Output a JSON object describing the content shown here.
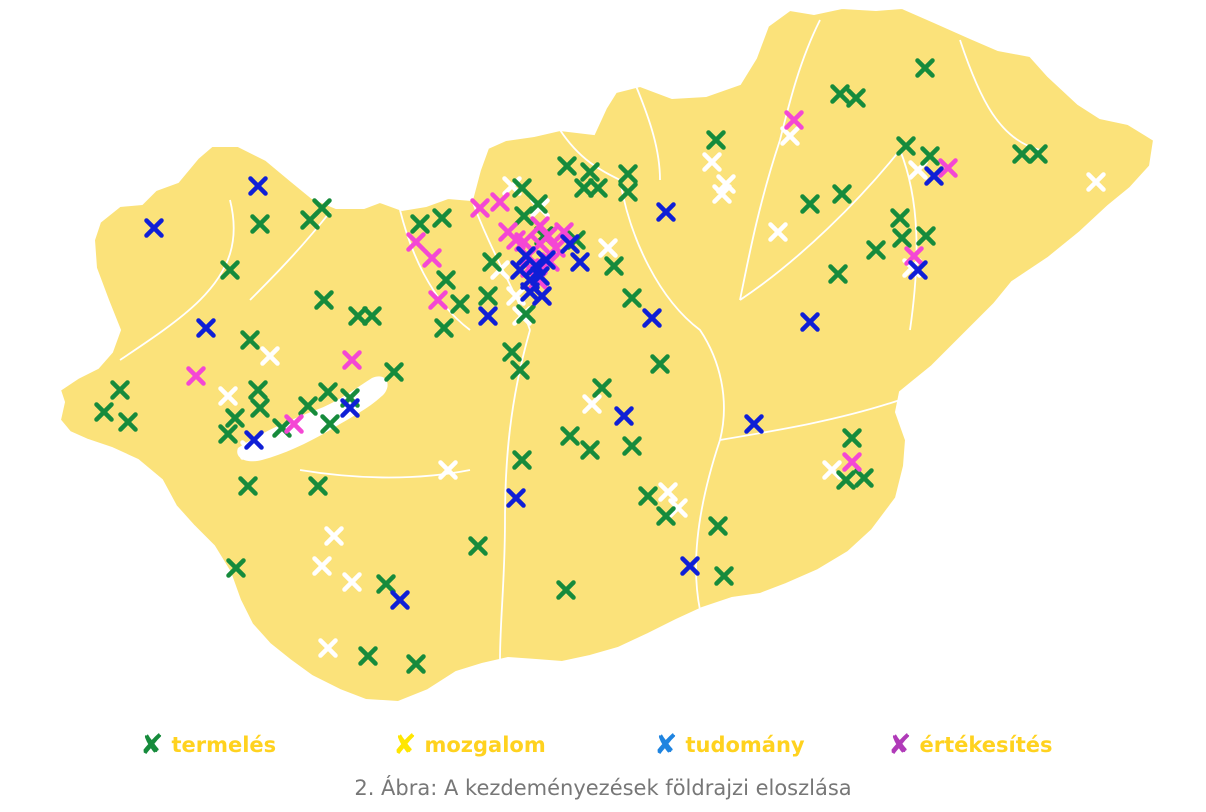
{
  "colors": {
    "land": "#fbe27a",
    "border": "#ffffff",
    "water": "#ffffff",
    "termeles": "#168b3c",
    "mozgalom": "#ffffff",
    "tudomany": "#0f1fd6",
    "ertekesites": "#f447d4",
    "legend_text": "#ffd21f",
    "legend_termeles_icon": "#168b3c",
    "legend_mozgalom_icon": "#ffe600",
    "legend_tudomany_icon": "#1f84e0",
    "legend_ertekesites_icon": "#b03ab8"
  },
  "legend": [
    {
      "key": "termeles",
      "label": "termelés",
      "icon": "x-mark-icon"
    },
    {
      "key": "mozgalom",
      "label": "mozgalom",
      "icon": "x-mark-icon"
    },
    {
      "key": "tudomany",
      "label": "tudomány",
      "icon": "x-mark-icon"
    },
    {
      "key": "ertekesites",
      "label": "értékesítés",
      "icon": "x-mark-icon"
    }
  ],
  "caption": "2. Ábra: A kezdeményezések földrajzi eloszlása",
  "marker_counts": {
    "termeles": 112,
    "mozgalom": 27,
    "tudomany": 26,
    "ertekesites": 25
  }
}
